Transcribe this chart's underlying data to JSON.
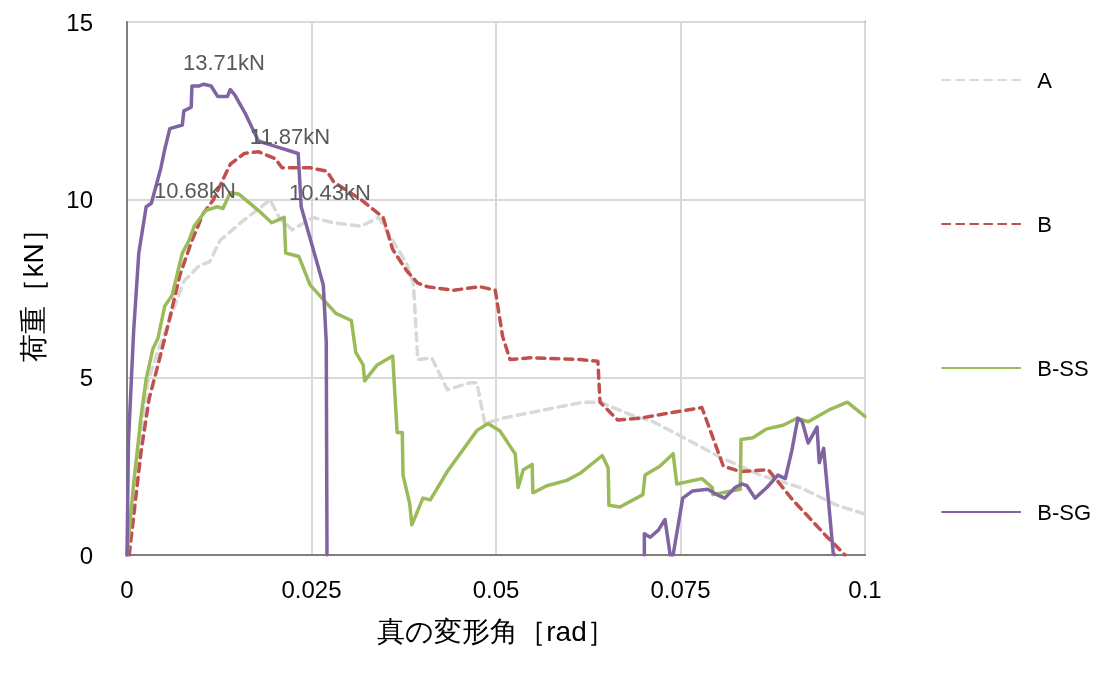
{
  "chart_data": {
    "type": "line",
    "xlabel": "真の変形角［rad］",
    "ylabel": "荷重［kN］",
    "xlim": [
      0,
      0.1
    ],
    "xticks": [
      0,
      0.025,
      0.05,
      0.075,
      0.1
    ],
    "ylim": [
      0,
      15
    ],
    "yticks": [
      0,
      5,
      10,
      15
    ],
    "grid": true,
    "legend": "right",
    "marker": "none",
    "annotations": [
      "13.71kN",
      "11.87kN",
      "10.68kN",
      "10.43kN"
    ],
    "series": [
      {
        "name": "A",
        "color": "#d9d9d9",
        "line_style": "dashed",
        "x": [
          0,
          0.0012,
          0.0028,
          0.0042,
          0.0061,
          0.0077,
          0.0098,
          0.0112,
          0.0126,
          0.0154,
          0.0182,
          0.0194,
          0.0206,
          0.0224,
          0.0252,
          0.028,
          0.0317,
          0.0341,
          0.036,
          0.0379,
          0.0388,
          0.0394,
          0.0413,
          0.0434,
          0.0465,
          0.0474,
          0.0485,
          0.0509,
          0.0618,
          0.0641,
          0.0682,
          0.0713,
          0.0759,
          0.0804,
          0.0858,
          0.0912,
          0.0962,
          0.1
        ],
        "values": [
          0,
          2.45,
          4.85,
          5.75,
          6.8,
          7.7,
          8.15,
          8.25,
          8.85,
          9.35,
          9.8,
          10.0,
          9.5,
          9.15,
          9.5,
          9.35,
          9.25,
          9.5,
          8.85,
          8.2,
          7.65,
          5.5,
          5.55,
          4.65,
          4.85,
          4.85,
          3.7,
          3.85,
          4.3,
          4.3,
          3.95,
          3.75,
          3.25,
          2.75,
          2.25,
          1.9,
          1.4,
          1.15
        ]
      },
      {
        "name": "B",
        "color": "#c0504d",
        "line_style": "dashed",
        "x": [
          0.0003,
          0.0019,
          0.003,
          0.0042,
          0.0056,
          0.0072,
          0.0088,
          0.0103,
          0.0117,
          0.014,
          0.0159,
          0.0178,
          0.0201,
          0.021,
          0.0248,
          0.0271,
          0.028,
          0.0317,
          0.0347,
          0.036,
          0.0379,
          0.0394,
          0.0407,
          0.0442,
          0.0478,
          0.0499,
          0.0509,
          0.0519,
          0.0546,
          0.0614,
          0.0638,
          0.0641,
          0.0665,
          0.0695,
          0.0736,
          0.0779,
          0.0808,
          0.0831,
          0.0869,
          0.0902,
          0.0949,
          0.0973
        ],
        "values": [
          0,
          2.9,
          4.4,
          5.35,
          6.5,
          7.9,
          8.85,
          9.6,
          10.0,
          11.0,
          11.3,
          11.35,
          11.15,
          10.9,
          10.9,
          10.8,
          10.5,
          10.0,
          9.5,
          8.6,
          8.0,
          7.65,
          7.55,
          7.45,
          7.55,
          7.45,
          6.15,
          5.5,
          5.55,
          5.5,
          5.45,
          4.3,
          3.8,
          3.85,
          4.0,
          4.15,
          2.5,
          2.35,
          2.4,
          1.55,
          0.5,
          0
        ]
      },
      {
        "name": "B-SS",
        "color": "#9bbb59",
        "line_style": "solid",
        "x": [
          0,
          0.0009,
          0.0019,
          0.0026,
          0.0035,
          0.0042,
          0.0051,
          0.0061,
          0.0075,
          0.0084,
          0.0091,
          0.0107,
          0.0122,
          0.013,
          0.014,
          0.0152,
          0.0178,
          0.0196,
          0.0213,
          0.0215,
          0.0233,
          0.0248,
          0.0283,
          0.0304,
          0.031,
          0.032,
          0.0322,
          0.0339,
          0.036,
          0.0366,
          0.0373,
          0.0374,
          0.0383,
          0.0386,
          0.0401,
          0.0411,
          0.0434,
          0.0474,
          0.0489,
          0.0505,
          0.0526,
          0.053,
          0.0537,
          0.0549,
          0.055,
          0.0569,
          0.0596,
          0.0614,
          0.0644,
          0.0652,
          0.0653,
          0.0668,
          0.0699,
          0.0702,
          0.0722,
          0.074,
          0.0745,
          0.0779,
          0.0793,
          0.0794,
          0.0831,
          0.0832,
          0.0848,
          0.0867,
          0.0889,
          0.0908,
          0.0923,
          0.0953,
          0.0976,
          0.1
        ],
        "values": [
          0,
          2.0,
          3.9,
          4.95,
          5.8,
          6.1,
          7.0,
          7.3,
          8.5,
          8.85,
          9.25,
          9.7,
          9.8,
          9.75,
          10.2,
          10.15,
          9.7,
          9.35,
          9.5,
          8.5,
          8.4,
          7.6,
          6.8,
          6.6,
          5.7,
          5.35,
          4.9,
          5.35,
          5.6,
          3.45,
          3.45,
          2.25,
          1.45,
          0.85,
          1.6,
          1.55,
          2.35,
          3.5,
          3.7,
          3.5,
          2.85,
          1.9,
          2.4,
          2.55,
          1.75,
          1.95,
          2.1,
          2.3,
          2.8,
          2.45,
          1.4,
          1.35,
          1.7,
          2.25,
          2.5,
          2.85,
          2.0,
          2.15,
          1.9,
          1.7,
          1.85,
          3.25,
          3.3,
          3.55,
          3.65,
          3.85,
          3.75,
          4.1,
          4.3,
          3.9
        ]
      },
      {
        "name": "B-SG",
        "color": "#8064a2",
        "line_style": "solid",
        "x": [
          0,
          0.0002,
          0.0009,
          0.0016,
          0.0026,
          0.0033,
          0.0046,
          0.0051,
          0.0058,
          0.0075,
          0.0077,
          0.0087,
          0.0088,
          0.0098,
          0.0104,
          0.0114,
          0.0123,
          0.0136,
          0.014,
          0.0146,
          0.0161,
          0.0178,
          0.0201,
          0.0232,
          0.0236,
          0.0266,
          0.027,
          0.0271,
          0.05,
          0.0701,
          0.0701,
          0.0709,
          0.072,
          0.0729,
          0.0736,
          0.074,
          0.0753,
          0.0766,
          0.0787,
          0.0799,
          0.081,
          0.0824,
          0.0833,
          0.084,
          0.0851,
          0.0867,
          0.0882,
          0.0892,
          0.0901,
          0.0909,
          0.0915,
          0.0923,
          0.0935,
          0.0938,
          0.0944,
          0.0957,
          0.0959
        ],
        "values": [
          0,
          3.2,
          6.3,
          8.5,
          9.8,
          9.9,
          10.9,
          11.4,
          12.0,
          12.1,
          12.5,
          12.6,
          13.2,
          13.2,
          13.25,
          13.2,
          12.9,
          12.9,
          13.1,
          12.95,
          12.4,
          11.65,
          11.5,
          11.3,
          9.8,
          7.6,
          6.0,
          0,
          null,
          0,
          0.6,
          0.5,
          0.7,
          1.0,
          0,
          0,
          1.6,
          1.8,
          1.85,
          1.7,
          1.6,
          1.9,
          2.0,
          1.95,
          1.6,
          1.9,
          2.25,
          2.15,
          2.95,
          3.85,
          3.75,
          3.15,
          3.6,
          2.6,
          3.0,
          0.05,
          0
        ]
      }
    ]
  }
}
